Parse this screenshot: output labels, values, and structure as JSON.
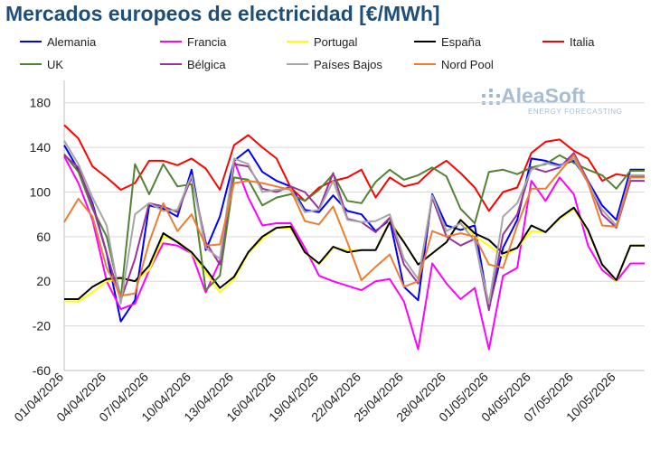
{
  "chart_data": {
    "type": "line",
    "title": "Mercados europeos de electricidad [€/MWh]",
    "xlabel": "",
    "ylabel": "",
    "ylim": [
      -60,
      200
    ],
    "yticks": [
      -60,
      -20,
      20,
      60,
      100,
      140,
      180
    ],
    "grid": "horizontal",
    "legend": "top",
    "x": [
      "01/04/2026",
      "02/04/2026",
      "03/04/2026",
      "04/04/2026",
      "05/04/2026",
      "06/04/2026",
      "07/04/2026",
      "08/04/2026",
      "09/04/2026",
      "10/04/2026",
      "11/04/2026",
      "12/04/2026",
      "13/04/2026",
      "14/04/2026",
      "15/04/2026",
      "16/04/2026",
      "17/04/2026",
      "18/04/2026",
      "19/04/2026",
      "20/04/2026",
      "21/04/2026",
      "22/04/2026",
      "23/04/2026",
      "24/04/2026",
      "25/04/2026",
      "26/04/2026",
      "27/04/2026",
      "28/04/2026",
      "29/04/2026",
      "30/04/2026",
      "01/05/2026",
      "02/05/2026",
      "03/05/2026",
      "04/05/2026",
      "05/05/2026",
      "06/05/2026",
      "07/05/2026",
      "08/05/2026",
      "09/05/2026",
      "10/05/2026",
      "11/05/2026",
      "12/05/2026"
    ],
    "xtick_labels": [
      "01/04/2026",
      "04/04/2026",
      "07/04/2026",
      "10/04/2026",
      "13/04/2026",
      "16/04/2026",
      "19/04/2026",
      "22/04/2026",
      "25/04/2026",
      "28/04/2026",
      "01/05/2026",
      "04/05/2026",
      "07/05/2026",
      "10/05/2026"
    ],
    "series": [
      {
        "name": "Alemania",
        "color": "#0000ff",
        "values": [
          142,
          120,
          90,
          45,
          -16,
          3,
          88,
          85,
          78,
          120,
          48,
          78,
          128,
          138,
          118,
          110,
          105,
          84,
          82,
          97,
          83,
          80,
          65,
          75,
          15,
          3,
          98,
          70,
          66,
          70,
          -4,
          50,
          75,
          130,
          128,
          124,
          128,
          110,
          88,
          75,
          120,
          120
        ]
      },
      {
        "name": "Francia",
        "color": "#ff00ff",
        "values": [
          132,
          108,
          75,
          20,
          -5,
          0,
          30,
          54,
          52,
          45,
          10,
          38,
          128,
          95,
          70,
          72,
          72,
          50,
          25,
          20,
          16,
          12,
          20,
          22,
          2,
          -41,
          36,
          18,
          4,
          14,
          -41,
          25,
          32,
          110,
          92,
          113,
          98,
          52,
          30,
          20,
          36,
          36
        ]
      },
      {
        "name": "Portugal",
        "color": "#ffff00",
        "values": [
          2,
          2,
          10,
          20,
          22,
          20,
          30,
          60,
          56,
          45,
          28,
          10,
          22,
          45,
          58,
          68,
          68,
          46,
          35,
          50,
          48,
          48,
          48,
          75,
          55,
          35,
          45,
          55,
          75,
          60,
          52,
          42,
          50,
          65,
          64,
          76,
          85,
          65,
          35,
          20,
          52,
          52
        ]
      },
      {
        "name": "España",
        "color": "#000000",
        "values": [
          4,
          4,
          15,
          22,
          23,
          20,
          34,
          63,
          55,
          46,
          31,
          14,
          24,
          46,
          60,
          68,
          69,
          46,
          36,
          51,
          46,
          48,
          48,
          73,
          55,
          35,
          45,
          55,
          75,
          63,
          57,
          45,
          50,
          70,
          64,
          77,
          86,
          66,
          35,
          21,
          52,
          52
        ]
      },
      {
        "name": "Italia",
        "color": "#ff0000",
        "values": [
          160,
          148,
          123,
          113,
          102,
          108,
          128,
          128,
          124,
          130,
          121,
          102,
          142,
          151,
          140,
          130,
          104,
          92,
          104,
          110,
          113,
          120,
          95,
          113,
          105,
          108,
          120,
          128,
          117,
          104,
          83,
          100,
          104,
          135,
          145,
          147,
          137,
          130,
          110,
          116,
          114,
          114
        ]
      },
      {
        "name": "UK",
        "color": "#548235",
        "values": [
          134,
          118,
          85,
          60,
          5,
          125,
          98,
          125,
          105,
          107,
          12,
          25,
          113,
          111,
          88,
          95,
          98,
          92,
          102,
          116,
          92,
          90,
          109,
          120,
          111,
          115,
          122,
          114,
          85,
          72,
          118,
          120,
          116,
          122,
          125,
          133,
          126,
          120,
          115,
          103,
          119,
          119
        ]
      },
      {
        "name": "Bélgica",
        "color": "#993399",
        "values": [
          133,
          122,
          88,
          45,
          3,
          40,
          90,
          87,
          82,
          113,
          55,
          35,
          125,
          123,
          103,
          100,
          105,
          100,
          85,
          117,
          76,
          73,
          64,
          77,
          35,
          18,
          95,
          60,
          52,
          58,
          -6,
          62,
          80,
          122,
          118,
          122,
          135,
          110,
          80,
          68,
          110,
          110
        ]
      },
      {
        "name": "Países Bajos",
        "color": "#a6a6a6",
        "values": [
          146,
          125,
          95,
          70,
          0,
          80,
          90,
          83,
          84,
          115,
          50,
          40,
          130,
          125,
          100,
          102,
          103,
          82,
          84,
          110,
          75,
          73,
          74,
          80,
          40,
          22,
          97,
          65,
          72,
          56,
          0,
          78,
          90,
          120,
          126,
          123,
          130,
          108,
          84,
          70,
          115,
          115
        ]
      },
      {
        "name": "Nord Pool",
        "color": "#ed7d31",
        "values": [
          73,
          94,
          78,
          32,
          7,
          9,
          55,
          90,
          65,
          80,
          52,
          53,
          108,
          110,
          108,
          105,
          102,
          74,
          71,
          87,
          55,
          21,
          33,
          44,
          15,
          20,
          65,
          60,
          63,
          60,
          35,
          32,
          70,
          103,
          103,
          118,
          133,
          108,
          70,
          69,
          113,
          113
        ]
      }
    ]
  },
  "logo": {
    "name": "AleaSoft",
    "tagline": "ENERGY FORECASTING"
  }
}
